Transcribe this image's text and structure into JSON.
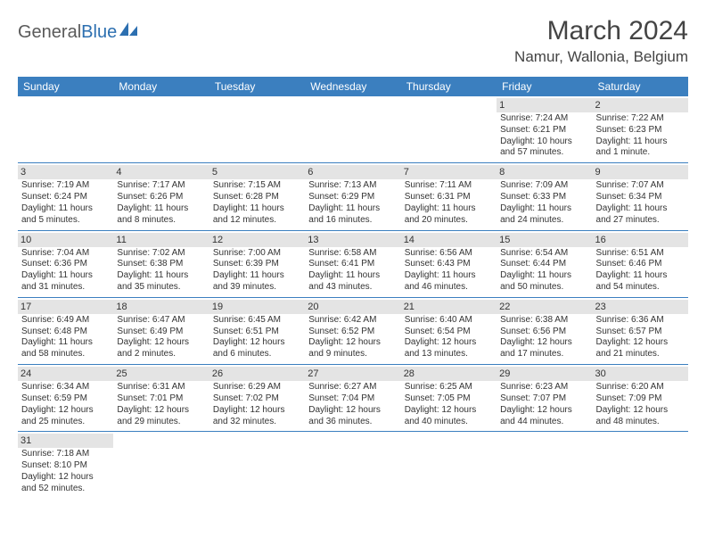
{
  "logo": {
    "general": "General",
    "blue": "Blue"
  },
  "title": "March 2024",
  "location": "Namur, Wallonia, Belgium",
  "colors": {
    "header_bg": "#3b7fbf",
    "header_text": "#ffffff",
    "daynum_bg": "#e4e4e4",
    "rule": "#3b7fbf",
    "logo_blue": "#2c6fb0",
    "logo_gray": "#5a5a5a"
  },
  "weekdays": [
    "Sunday",
    "Monday",
    "Tuesday",
    "Wednesday",
    "Thursday",
    "Friday",
    "Saturday"
  ],
  "weeks": [
    [
      null,
      null,
      null,
      null,
      null,
      {
        "n": "1",
        "sr": "Sunrise: 7:24 AM",
        "ss": "Sunset: 6:21 PM",
        "dl1": "Daylight: 10 hours",
        "dl2": "and 57 minutes."
      },
      {
        "n": "2",
        "sr": "Sunrise: 7:22 AM",
        "ss": "Sunset: 6:23 PM",
        "dl1": "Daylight: 11 hours",
        "dl2": "and 1 minute."
      }
    ],
    [
      {
        "n": "3",
        "sr": "Sunrise: 7:19 AM",
        "ss": "Sunset: 6:24 PM",
        "dl1": "Daylight: 11 hours",
        "dl2": "and 5 minutes."
      },
      {
        "n": "4",
        "sr": "Sunrise: 7:17 AM",
        "ss": "Sunset: 6:26 PM",
        "dl1": "Daylight: 11 hours",
        "dl2": "and 8 minutes."
      },
      {
        "n": "5",
        "sr": "Sunrise: 7:15 AM",
        "ss": "Sunset: 6:28 PM",
        "dl1": "Daylight: 11 hours",
        "dl2": "and 12 minutes."
      },
      {
        "n": "6",
        "sr": "Sunrise: 7:13 AM",
        "ss": "Sunset: 6:29 PM",
        "dl1": "Daylight: 11 hours",
        "dl2": "and 16 minutes."
      },
      {
        "n": "7",
        "sr": "Sunrise: 7:11 AM",
        "ss": "Sunset: 6:31 PM",
        "dl1": "Daylight: 11 hours",
        "dl2": "and 20 minutes."
      },
      {
        "n": "8",
        "sr": "Sunrise: 7:09 AM",
        "ss": "Sunset: 6:33 PM",
        "dl1": "Daylight: 11 hours",
        "dl2": "and 24 minutes."
      },
      {
        "n": "9",
        "sr": "Sunrise: 7:07 AM",
        "ss": "Sunset: 6:34 PM",
        "dl1": "Daylight: 11 hours",
        "dl2": "and 27 minutes."
      }
    ],
    [
      {
        "n": "10",
        "sr": "Sunrise: 7:04 AM",
        "ss": "Sunset: 6:36 PM",
        "dl1": "Daylight: 11 hours",
        "dl2": "and 31 minutes."
      },
      {
        "n": "11",
        "sr": "Sunrise: 7:02 AM",
        "ss": "Sunset: 6:38 PM",
        "dl1": "Daylight: 11 hours",
        "dl2": "and 35 minutes."
      },
      {
        "n": "12",
        "sr": "Sunrise: 7:00 AM",
        "ss": "Sunset: 6:39 PM",
        "dl1": "Daylight: 11 hours",
        "dl2": "and 39 minutes."
      },
      {
        "n": "13",
        "sr": "Sunrise: 6:58 AM",
        "ss": "Sunset: 6:41 PM",
        "dl1": "Daylight: 11 hours",
        "dl2": "and 43 minutes."
      },
      {
        "n": "14",
        "sr": "Sunrise: 6:56 AM",
        "ss": "Sunset: 6:43 PM",
        "dl1": "Daylight: 11 hours",
        "dl2": "and 46 minutes."
      },
      {
        "n": "15",
        "sr": "Sunrise: 6:54 AM",
        "ss": "Sunset: 6:44 PM",
        "dl1": "Daylight: 11 hours",
        "dl2": "and 50 minutes."
      },
      {
        "n": "16",
        "sr": "Sunrise: 6:51 AM",
        "ss": "Sunset: 6:46 PM",
        "dl1": "Daylight: 11 hours",
        "dl2": "and 54 minutes."
      }
    ],
    [
      {
        "n": "17",
        "sr": "Sunrise: 6:49 AM",
        "ss": "Sunset: 6:48 PM",
        "dl1": "Daylight: 11 hours",
        "dl2": "and 58 minutes."
      },
      {
        "n": "18",
        "sr": "Sunrise: 6:47 AM",
        "ss": "Sunset: 6:49 PM",
        "dl1": "Daylight: 12 hours",
        "dl2": "and 2 minutes."
      },
      {
        "n": "19",
        "sr": "Sunrise: 6:45 AM",
        "ss": "Sunset: 6:51 PM",
        "dl1": "Daylight: 12 hours",
        "dl2": "and 6 minutes."
      },
      {
        "n": "20",
        "sr": "Sunrise: 6:42 AM",
        "ss": "Sunset: 6:52 PM",
        "dl1": "Daylight: 12 hours",
        "dl2": "and 9 minutes."
      },
      {
        "n": "21",
        "sr": "Sunrise: 6:40 AM",
        "ss": "Sunset: 6:54 PM",
        "dl1": "Daylight: 12 hours",
        "dl2": "and 13 minutes."
      },
      {
        "n": "22",
        "sr": "Sunrise: 6:38 AM",
        "ss": "Sunset: 6:56 PM",
        "dl1": "Daylight: 12 hours",
        "dl2": "and 17 minutes."
      },
      {
        "n": "23",
        "sr": "Sunrise: 6:36 AM",
        "ss": "Sunset: 6:57 PM",
        "dl1": "Daylight: 12 hours",
        "dl2": "and 21 minutes."
      }
    ],
    [
      {
        "n": "24",
        "sr": "Sunrise: 6:34 AM",
        "ss": "Sunset: 6:59 PM",
        "dl1": "Daylight: 12 hours",
        "dl2": "and 25 minutes."
      },
      {
        "n": "25",
        "sr": "Sunrise: 6:31 AM",
        "ss": "Sunset: 7:01 PM",
        "dl1": "Daylight: 12 hours",
        "dl2": "and 29 minutes."
      },
      {
        "n": "26",
        "sr": "Sunrise: 6:29 AM",
        "ss": "Sunset: 7:02 PM",
        "dl1": "Daylight: 12 hours",
        "dl2": "and 32 minutes."
      },
      {
        "n": "27",
        "sr": "Sunrise: 6:27 AM",
        "ss": "Sunset: 7:04 PM",
        "dl1": "Daylight: 12 hours",
        "dl2": "and 36 minutes."
      },
      {
        "n": "28",
        "sr": "Sunrise: 6:25 AM",
        "ss": "Sunset: 7:05 PM",
        "dl1": "Daylight: 12 hours",
        "dl2": "and 40 minutes."
      },
      {
        "n": "29",
        "sr": "Sunrise: 6:23 AM",
        "ss": "Sunset: 7:07 PM",
        "dl1": "Daylight: 12 hours",
        "dl2": "and 44 minutes."
      },
      {
        "n": "30",
        "sr": "Sunrise: 6:20 AM",
        "ss": "Sunset: 7:09 PM",
        "dl1": "Daylight: 12 hours",
        "dl2": "and 48 minutes."
      }
    ],
    [
      {
        "n": "31",
        "sr": "Sunrise: 7:18 AM",
        "ss": "Sunset: 8:10 PM",
        "dl1": "Daylight: 12 hours",
        "dl2": "and 52 minutes."
      },
      null,
      null,
      null,
      null,
      null,
      null
    ]
  ]
}
